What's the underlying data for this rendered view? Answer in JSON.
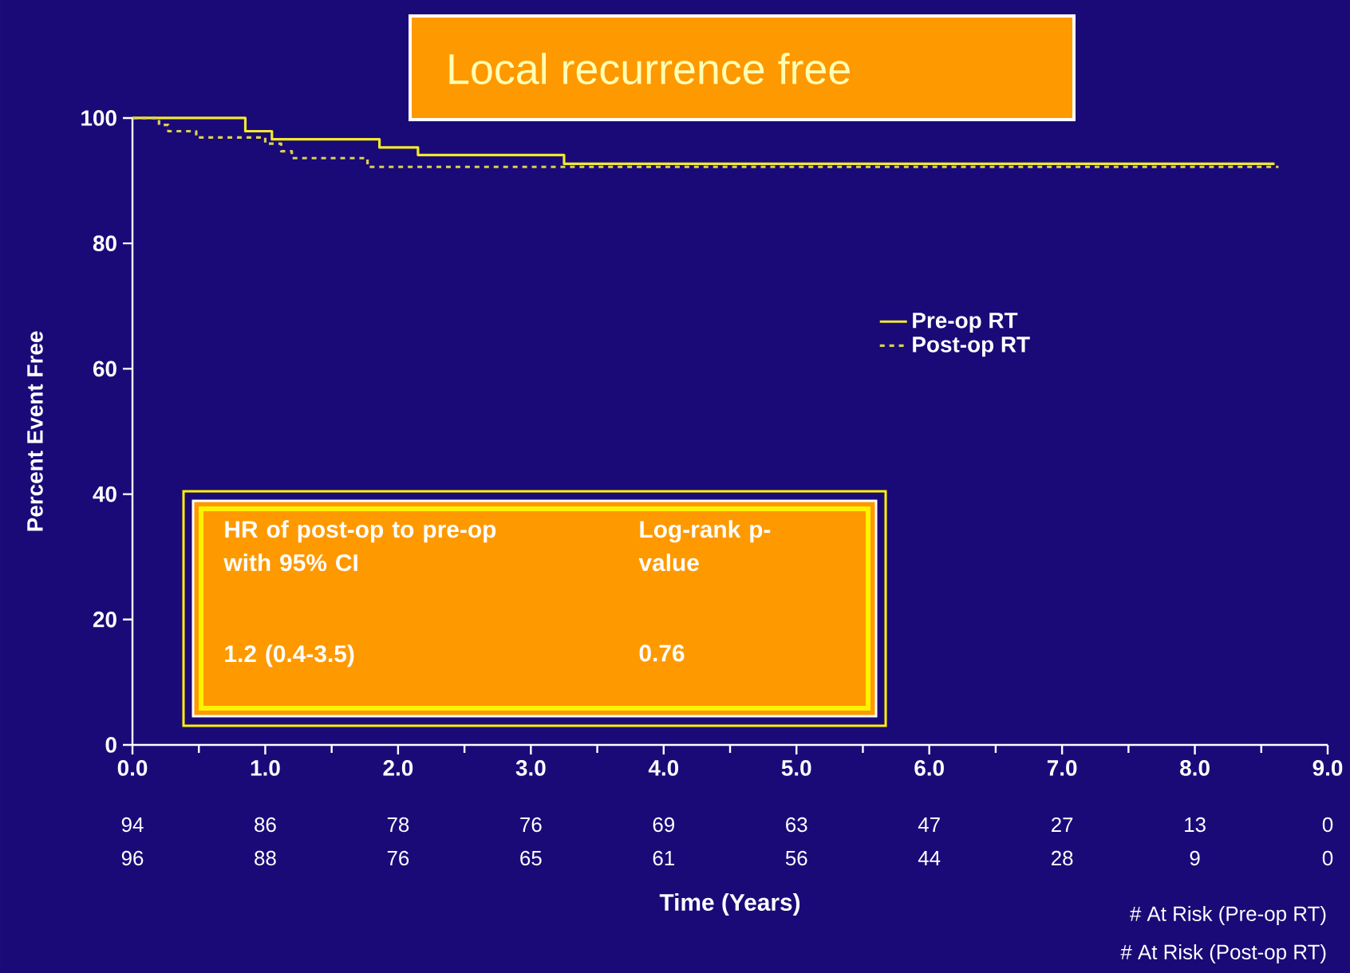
{
  "chart_data": {
    "type": "step",
    "title": "Local recurrence free",
    "xlabel": "Time (Years)",
    "ylabel": "Percent Event Free",
    "xlim": [
      0,
      9
    ],
    "ylim": [
      0,
      100
    ],
    "xticks": [
      {
        "value": 0,
        "label": "0.0"
      },
      {
        "value": 1,
        "label": "1.0"
      },
      {
        "value": 2,
        "label": "2.0"
      },
      {
        "value": 3,
        "label": "3.0"
      },
      {
        "value": 4,
        "label": "4.0"
      },
      {
        "value": 5,
        "label": "5.0"
      },
      {
        "value": 6,
        "label": "6.0"
      },
      {
        "value": 7,
        "label": "7.0"
      },
      {
        "value": 8,
        "label": "8.0"
      },
      {
        "value": 9,
        "label": "9.0"
      }
    ],
    "yticks": [
      0,
      20,
      40,
      60,
      80,
      100
    ],
    "legend": "right",
    "series": [
      {
        "name": "Pre-op RT",
        "color": "#f0e830",
        "line_style": "solid",
        "x": [
          0,
          0.85,
          1.05,
          1.86,
          2.15,
          3.25,
          8.6
        ],
        "values": [
          100,
          97.9,
          96.6,
          95.3,
          94.1,
          92.7,
          92.7
        ]
      },
      {
        "name": "Post-op RT",
        "color": "#d8d050",
        "line_style": "dashed",
        "x": [
          0,
          0.2,
          0.27,
          0.48,
          1.0,
          1.12,
          1.2,
          1.77,
          8.63
        ],
        "values": [
          100,
          98.9,
          97.9,
          96.9,
          95.9,
          94.7,
          93.6,
          92.2,
          92.2
        ]
      }
    ],
    "annotations": [
      "HR of post-op to pre-op with 95% CI",
      "Log-rank p-value",
      "1.2 (0.4-3.5)",
      "0.76",
      "# At Risk (Pre-op RT)",
      "# At Risk (Post-op RT)",
      "94",
      "86",
      "78",
      "76",
      "69",
      "63",
      "47",
      "27",
      "13",
      "0",
      "96",
      "88",
      "76",
      "65",
      "61",
      "56",
      "44",
      "28",
      "9",
      "0"
    ]
  }
}
